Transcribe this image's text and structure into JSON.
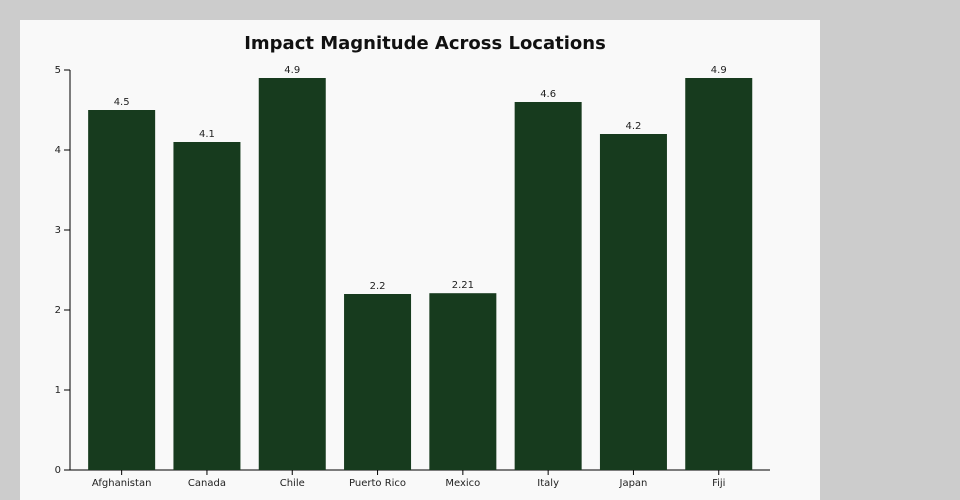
{
  "chart_data": {
    "type": "bar",
    "title": "Impact Magnitude Across Locations",
    "categories": [
      "Afghanistan",
      "Canada",
      "Chile",
      "Puerto Rico",
      "Mexico",
      "Italy",
      "Japan",
      "Fiji"
    ],
    "values": [
      4.5,
      4.1,
      4.9,
      2.2,
      2.21,
      4.6,
      4.2,
      4.9
    ],
    "color": "#173b1e",
    "ylim": [
      0,
      5
    ],
    "yticks": [
      0,
      1,
      2,
      3,
      4,
      5
    ]
  }
}
